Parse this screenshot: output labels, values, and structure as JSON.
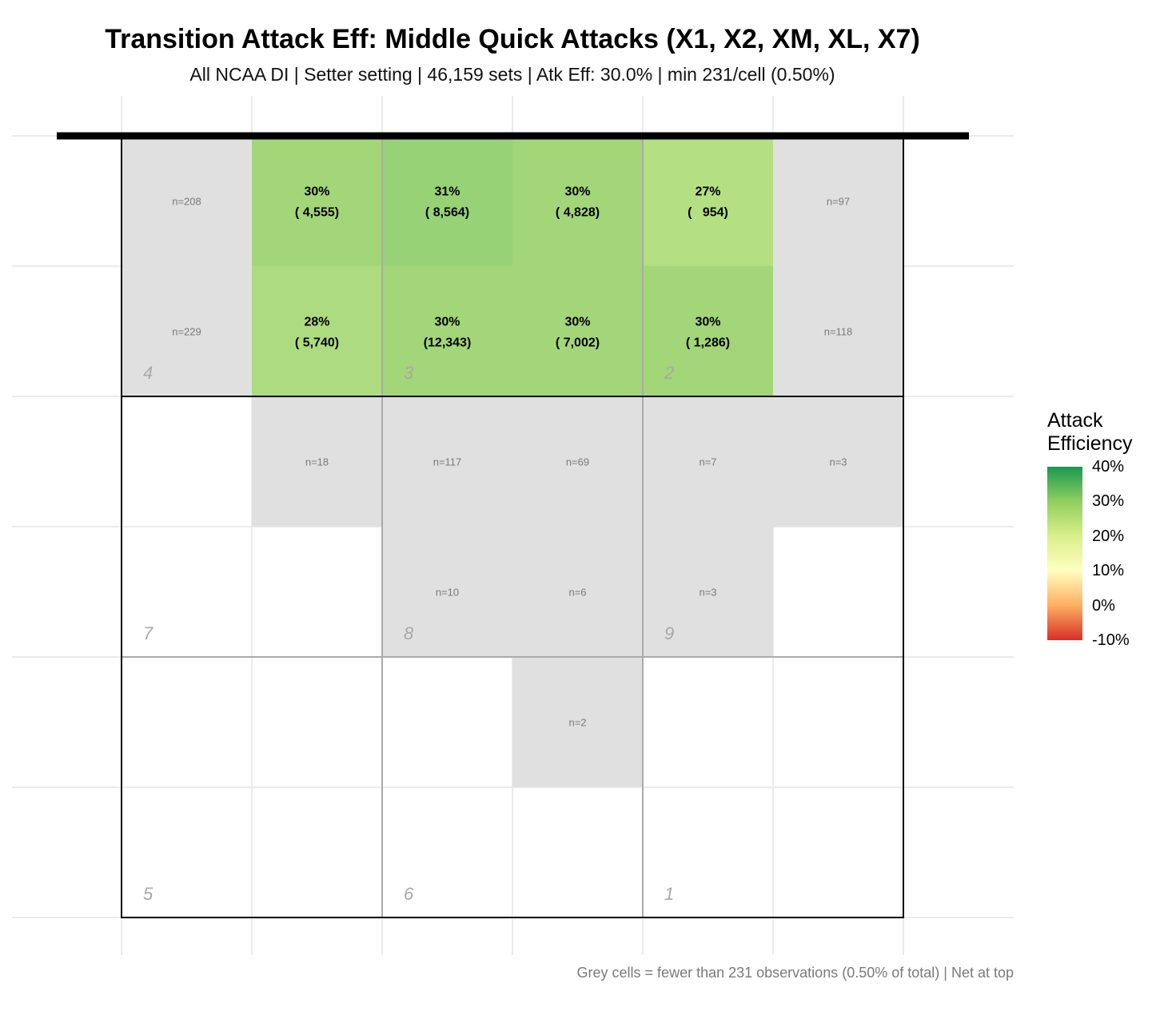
{
  "title": "Transition Attack Eff: Middle Quick Attacks (X1, X2, XM, XL, X7)",
  "subtitle": "All NCAA DI | Setter setting | 46,159 sets | Atk Eff: 30.0% | min 231/cell (0.50%)",
  "caption": "Grey cells = fewer than 231 observations (0.50% of total) | Net at top",
  "legend": {
    "title_line1": "Attack",
    "title_line2": "Efficiency",
    "ticks": [
      "40%",
      "30%",
      "20%",
      "10%",
      "0%",
      "-10%"
    ],
    "colors": [
      "#1a9850",
      "#91cf60",
      "#d9ef8b",
      "#ffffbf",
      "#fdae61",
      "#d73027"
    ]
  },
  "colors": {
    "grey_cell": "#e0e0e0",
    "net": "#000000"
  },
  "chart_data": {
    "type": "heatmap",
    "title": "Transition Attack Eff: Middle Quick Attacks (X1, X2, XM, XL, X7)",
    "color_range": [
      -10,
      40
    ],
    "cells": [
      {
        "row": 1,
        "col": 1,
        "n_label": "n=208"
      },
      {
        "row": 1,
        "col": 2,
        "pct": "30%",
        "count": "( 4,555)",
        "value": 30
      },
      {
        "row": 1,
        "col": 3,
        "pct": "31%",
        "count": "( 8,564)",
        "value": 31
      },
      {
        "row": 1,
        "col": 4,
        "pct": "30%",
        "count": "( 4,828)",
        "value": 30
      },
      {
        "row": 1,
        "col": 5,
        "pct": "27%",
        "count": "(   954)",
        "value": 27
      },
      {
        "row": 1,
        "col": 6,
        "n_label": "n=97"
      },
      {
        "row": 2,
        "col": 1,
        "n_label": "n=229"
      },
      {
        "row": 2,
        "col": 2,
        "pct": "28%",
        "count": "( 5,740)",
        "value": 28
      },
      {
        "row": 2,
        "col": 3,
        "pct": "30%",
        "count": "(12,343)",
        "value": 30
      },
      {
        "row": 2,
        "col": 4,
        "pct": "30%",
        "count": "( 7,002)",
        "value": 30
      },
      {
        "row": 2,
        "col": 5,
        "pct": "30%",
        "count": "( 1,286)",
        "value": 30
      },
      {
        "row": 2,
        "col": 6,
        "n_label": "n=118"
      },
      {
        "row": 3,
        "col": 2,
        "n_label": "n=18"
      },
      {
        "row": 3,
        "col": 3,
        "n_label": "n=117"
      },
      {
        "row": 3,
        "col": 4,
        "n_label": "n=69"
      },
      {
        "row": 3,
        "col": 5,
        "n_label": "n=7"
      },
      {
        "row": 3,
        "col": 6,
        "n_label": "n=3"
      },
      {
        "row": 4,
        "col": 3,
        "n_label": "n=10"
      },
      {
        "row": 4,
        "col": 4,
        "n_label": "n=6"
      },
      {
        "row": 4,
        "col": 5,
        "n_label": "n=3"
      },
      {
        "row": 5,
        "col": 4,
        "n_label": "n=2"
      }
    ],
    "zones": [
      {
        "label": "4",
        "row": 2,
        "col": 1
      },
      {
        "label": "3",
        "row": 2,
        "col": 3
      },
      {
        "label": "2",
        "row": 2,
        "col": 5
      },
      {
        "label": "7",
        "row": 4,
        "col": 1
      },
      {
        "label": "8",
        "row": 4,
        "col": 3
      },
      {
        "label": "9",
        "row": 4,
        "col": 5
      },
      {
        "label": "5",
        "row": 6,
        "col": 1
      },
      {
        "label": "6",
        "row": 6,
        "col": 3
      },
      {
        "label": "1",
        "row": 6,
        "col": 5
      }
    ]
  }
}
